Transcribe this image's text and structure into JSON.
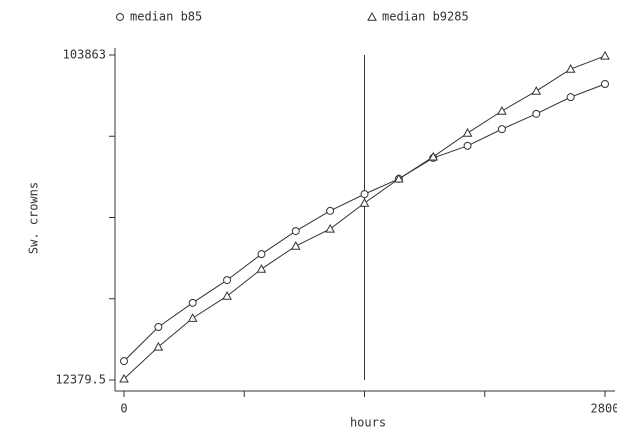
{
  "chart_data": {
    "type": "line",
    "x_label": "hours",
    "y_label": "Sw. crowns",
    "x": [
      0,
      200,
      400,
      600,
      800,
      1000,
      1200,
      1400,
      1600,
      1800,
      2000,
      2200,
      2400,
      2600,
      2800
    ],
    "series": [
      {
        "name": "median b85",
        "color": "#333333",
        "marker": "circle",
        "values": [
          17700,
          27300,
          34100,
          40500,
          47800,
          54300,
          60000,
          64700,
          69000,
          74900,
          78300,
          83000,
          87300,
          92000,
          95700
        ]
      },
      {
        "name": "median b9285",
        "color": "#333333",
        "marker": "triangle",
        "values": [
          12700,
          21700,
          29800,
          36000,
          43600,
          50100,
          54900,
          62200,
          69000,
          75200,
          81900,
          88100,
          93700,
          99900,
          103600
        ]
      }
    ],
    "xlim": [
      0,
      2800
    ],
    "xticks": [
      0,
      {
        "value": 700,
        "label": null
      },
      {
        "value": 1400,
        "label": null
      },
      {
        "value": 2100,
        "label": null
      },
      2800
    ],
    "ylim": [
      12379.5,
      103863
    ],
    "yticks": [
      12379.5,
      {
        "value": 35250.375,
        "label": null
      },
      {
        "value": 58121.25,
        "label": null
      },
      {
        "value": 80992.125,
        "label": null
      },
      103863
    ],
    "vline": 1400,
    "legend": "top"
  }
}
